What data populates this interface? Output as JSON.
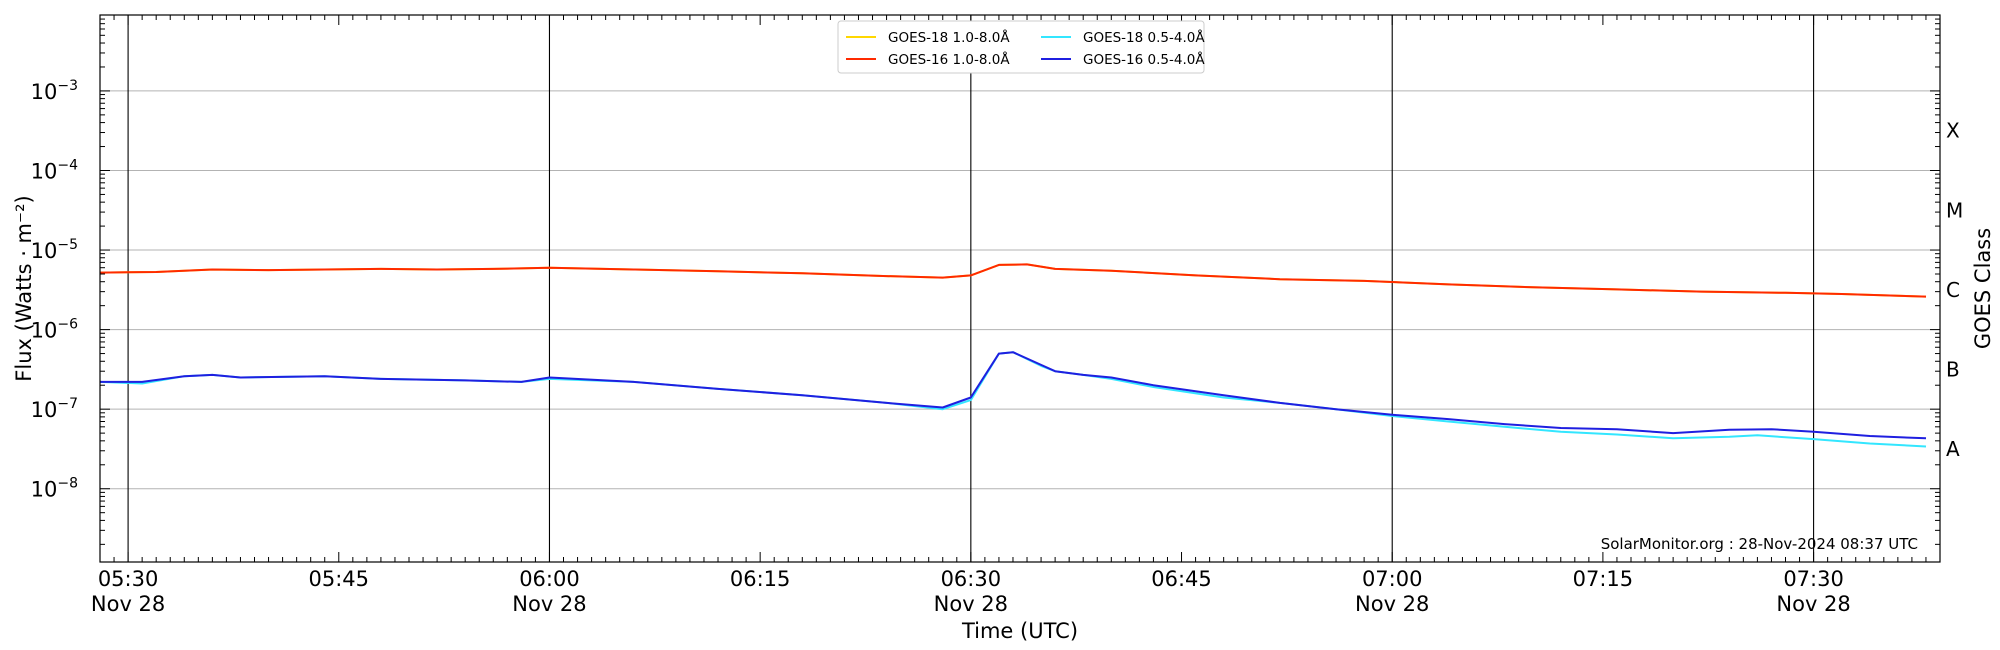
{
  "chart_data": {
    "type": "line",
    "xlabel": "Time (UTC)",
    "ylabel": "Flux (Watts · m⁻²)",
    "ylabel_right": "GOES Class",
    "yscale": "log",
    "ylim": [
      1.2e-09,
      0.009
    ],
    "xlim": [
      "05:28",
      "07:39"
    ],
    "grid": "horizontal at decades",
    "legend_position": "top-center",
    "credit": "SolarMonitor.org : 28-Nov-2024 08:37 UTC",
    "x_ticks": [
      {
        "time": "05:30",
        "label": "05:30",
        "sublabel": "Nov 28",
        "vline": true
      },
      {
        "time": "05:45",
        "label": "05:45",
        "sublabel": "",
        "vline": false
      },
      {
        "time": "06:00",
        "label": "06:00",
        "sublabel": "Nov 28",
        "vline": true
      },
      {
        "time": "06:15",
        "label": "06:15",
        "sublabel": "",
        "vline": false
      },
      {
        "time": "06:30",
        "label": "06:30",
        "sublabel": "Nov 28",
        "vline": true
      },
      {
        "time": "06:45",
        "label": "06:45",
        "sublabel": "",
        "vline": false
      },
      {
        "time": "07:00",
        "label": "07:00",
        "sublabel": "Nov 28",
        "vline": true
      },
      {
        "time": "07:15",
        "label": "07:15",
        "sublabel": "",
        "vline": false
      },
      {
        "time": "07:30",
        "label": "07:30",
        "sublabel": "Nov 28",
        "vline": true
      }
    ],
    "y_ticks": [
      {
        "value": 1e-08,
        "mantissa": "10",
        "exponent": "−8"
      },
      {
        "value": 1e-07,
        "mantissa": "10",
        "exponent": "−7"
      },
      {
        "value": 1e-06,
        "mantissa": "10",
        "exponent": "−6"
      },
      {
        "value": 1e-05,
        "mantissa": "10",
        "exponent": "−5"
      },
      {
        "value": 0.0001,
        "mantissa": "10",
        "exponent": "−4"
      },
      {
        "value": 0.001,
        "mantissa": "10",
        "exponent": "−3"
      }
    ],
    "goes_classes": [
      {
        "label": "A",
        "value": 3.16e-08
      },
      {
        "label": "B",
        "value": 3.16e-07
      },
      {
        "label": "C",
        "value": 3.16e-06
      },
      {
        "label": "M",
        "value": 3.16e-05
      },
      {
        "label": "X",
        "value": 0.000316
      }
    ],
    "series": [
      {
        "name": "GOES-18 1.0-8.0Å",
        "color": "#ffd700",
        "points": [
          [
            "05:28",
            5.2e-06
          ],
          [
            "05:32",
            5.3e-06
          ],
          [
            "05:36",
            5.7e-06
          ],
          [
            "05:40",
            5.6e-06
          ],
          [
            "05:44",
            5.7e-06
          ],
          [
            "05:48",
            5.8e-06
          ],
          [
            "05:52",
            5.7e-06
          ],
          [
            "05:56",
            5.8e-06
          ],
          [
            "06:00",
            6e-06
          ],
          [
            "06:06",
            5.7e-06
          ],
          [
            "06:12",
            5.4e-06
          ],
          [
            "06:18",
            5.1e-06
          ],
          [
            "06:24",
            4.7e-06
          ],
          [
            "06:28",
            4.5e-06
          ],
          [
            "06:30",
            4.8e-06
          ],
          [
            "06:32",
            6.5e-06
          ],
          [
            "06:34",
            6.6e-06
          ],
          [
            "06:36",
            5.8e-06
          ],
          [
            "06:40",
            5.5e-06
          ],
          [
            "06:46",
            4.8e-06
          ],
          [
            "06:52",
            4.3e-06
          ],
          [
            "06:58",
            4.1e-06
          ],
          [
            "07:04",
            3.7e-06
          ],
          [
            "07:10",
            3.4e-06
          ],
          [
            "07:16",
            3.2e-06
          ],
          [
            "07:22",
            3e-06
          ],
          [
            "07:28",
            2.9e-06
          ],
          [
            "07:32",
            2.8e-06
          ],
          [
            "07:38",
            2.6e-06
          ]
        ]
      },
      {
        "name": "GOES-16 1.0-8.0Å",
        "color": "#ff2a00",
        "points": [
          [
            "05:28",
            5.2e-06
          ],
          [
            "05:32",
            5.3e-06
          ],
          [
            "05:36",
            5.7e-06
          ],
          [
            "05:40",
            5.6e-06
          ],
          [
            "05:44",
            5.7e-06
          ],
          [
            "05:48",
            5.8e-06
          ],
          [
            "05:52",
            5.7e-06
          ],
          [
            "05:56",
            5.8e-06
          ],
          [
            "06:00",
            6e-06
          ],
          [
            "06:06",
            5.7e-06
          ],
          [
            "06:12",
            5.4e-06
          ],
          [
            "06:18",
            5.1e-06
          ],
          [
            "06:24",
            4.7e-06
          ],
          [
            "06:28",
            4.5e-06
          ],
          [
            "06:30",
            4.8e-06
          ],
          [
            "06:32",
            6.5e-06
          ],
          [
            "06:34",
            6.6e-06
          ],
          [
            "06:36",
            5.8e-06
          ],
          [
            "06:40",
            5.5e-06
          ],
          [
            "06:46",
            4.8e-06
          ],
          [
            "06:52",
            4.3e-06
          ],
          [
            "06:58",
            4.1e-06
          ],
          [
            "07:04",
            3.7e-06
          ],
          [
            "07:10",
            3.4e-06
          ],
          [
            "07:16",
            3.2e-06
          ],
          [
            "07:22",
            3e-06
          ],
          [
            "07:28",
            2.9e-06
          ],
          [
            "07:32",
            2.8e-06
          ],
          [
            "07:38",
            2.6e-06
          ]
        ]
      },
      {
        "name": "GOES-18 0.5-4.0Å",
        "color": "#33e6ff",
        "points": [
          [
            "05:28",
            2.2e-07
          ],
          [
            "05:31",
            2.1e-07
          ],
          [
            "05:34",
            2.6e-07
          ],
          [
            "05:36",
            2.7e-07
          ],
          [
            "05:38",
            2.5e-07
          ],
          [
            "05:44",
            2.6e-07
          ],
          [
            "05:48",
            2.4e-07
          ],
          [
            "05:54",
            2.3e-07
          ],
          [
            "05:58",
            2.2e-07
          ],
          [
            "06:00",
            2.4e-07
          ],
          [
            "06:06",
            2.2e-07
          ],
          [
            "06:12",
            1.8e-07
          ],
          [
            "06:18",
            1.5e-07
          ],
          [
            "06:24",
            1.2e-07
          ],
          [
            "06:28",
            1e-07
          ],
          [
            "06:30",
            1.3e-07
          ],
          [
            "06:32",
            5e-07
          ],
          [
            "06:33",
            5.2e-07
          ],
          [
            "06:35",
            3.5e-07
          ],
          [
            "06:36",
            3e-07
          ],
          [
            "06:38",
            2.7e-07
          ],
          [
            "06:40",
            2.4e-07
          ],
          [
            "06:43",
            1.9e-07
          ],
          [
            "06:48",
            1.4e-07
          ],
          [
            "06:52",
            1.2e-07
          ],
          [
            "06:56",
            1e-07
          ],
          [
            "07:00",
            8.2e-08
          ],
          [
            "07:04",
            7e-08
          ],
          [
            "07:08",
            6e-08
          ],
          [
            "07:12",
            5.2e-08
          ],
          [
            "07:16",
            4.8e-08
          ],
          [
            "07:20",
            4.3e-08
          ],
          [
            "07:24",
            4.5e-08
          ],
          [
            "07:26",
            4.7e-08
          ],
          [
            "07:30",
            4.2e-08
          ],
          [
            "07:34",
            3.7e-08
          ],
          [
            "07:38",
            3.4e-08
          ]
        ]
      },
      {
        "name": "GOES-16 0.5-4.0Å",
        "color": "#1f1fe0",
        "points": [
          [
            "05:28",
            2.2e-07
          ],
          [
            "05:31",
            2.2e-07
          ],
          [
            "05:34",
            2.6e-07
          ],
          [
            "05:36",
            2.7e-07
          ],
          [
            "05:38",
            2.5e-07
          ],
          [
            "05:44",
            2.6e-07
          ],
          [
            "05:48",
            2.4e-07
          ],
          [
            "05:54",
            2.3e-07
          ],
          [
            "05:58",
            2.2e-07
          ],
          [
            "06:00",
            2.5e-07
          ],
          [
            "06:06",
            2.2e-07
          ],
          [
            "06:12",
            1.8e-07
          ],
          [
            "06:18",
            1.5e-07
          ],
          [
            "06:24",
            1.2e-07
          ],
          [
            "06:28",
            1.05e-07
          ],
          [
            "06:30",
            1.4e-07
          ],
          [
            "06:32",
            5e-07
          ],
          [
            "06:33",
            5.2e-07
          ],
          [
            "06:35",
            3.6e-07
          ],
          [
            "06:36",
            3e-07
          ],
          [
            "06:38",
            2.7e-07
          ],
          [
            "06:40",
            2.5e-07
          ],
          [
            "06:43",
            2e-07
          ],
          [
            "06:48",
            1.5e-07
          ],
          [
            "06:52",
            1.2e-07
          ],
          [
            "06:56",
            1e-07
          ],
          [
            "07:00",
            8.5e-08
          ],
          [
            "07:04",
            7.5e-08
          ],
          [
            "07:08",
            6.5e-08
          ],
          [
            "07:12",
            5.8e-08
          ],
          [
            "07:16",
            5.6e-08
          ],
          [
            "07:20",
            5e-08
          ],
          [
            "07:24",
            5.5e-08
          ],
          [
            "07:27",
            5.6e-08
          ],
          [
            "07:30",
            5.2e-08
          ],
          [
            "07:34",
            4.6e-08
          ],
          [
            "07:38",
            4.3e-08
          ]
        ]
      }
    ]
  }
}
